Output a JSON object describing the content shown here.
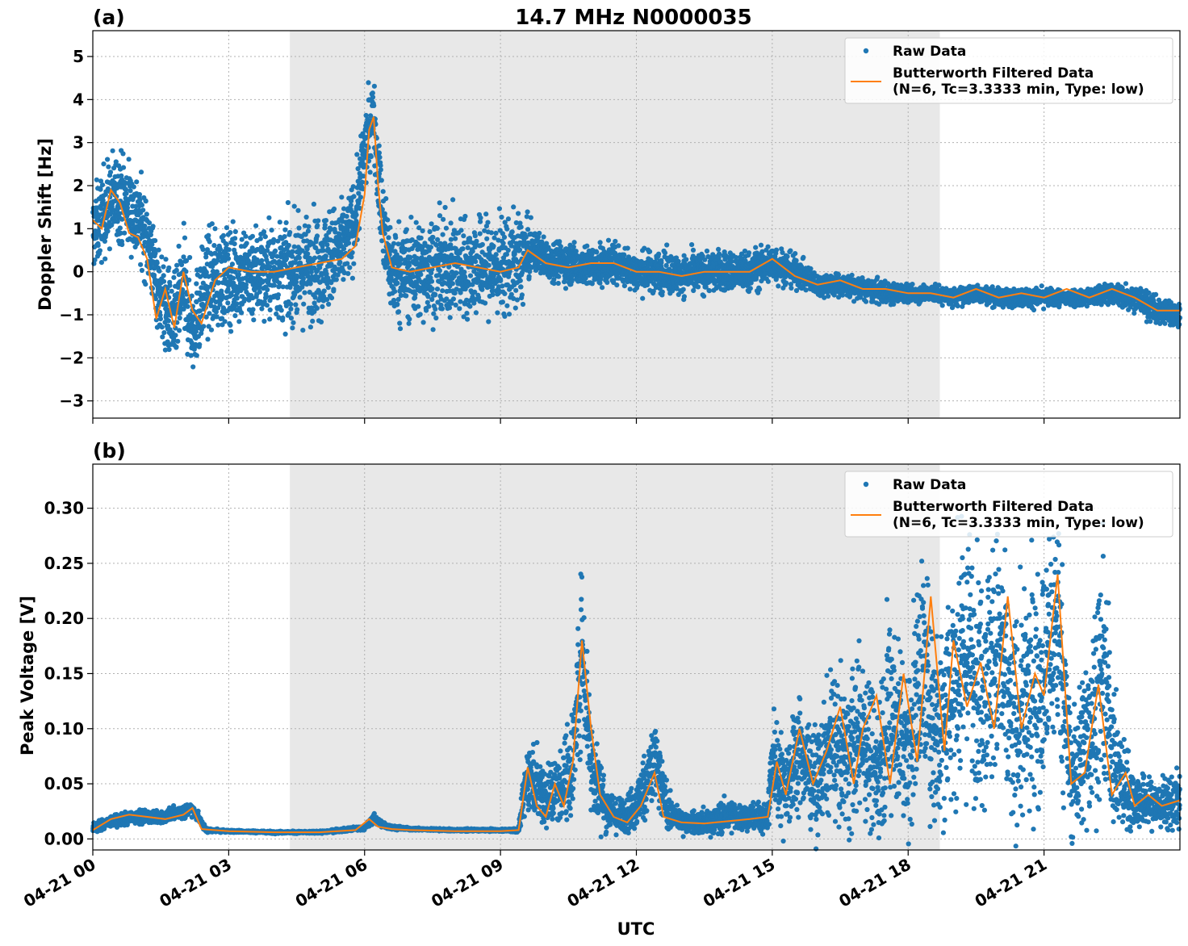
{
  "figure": {
    "title": "14.7 MHz N0000035",
    "xlabel": "UTC",
    "x_tick_labels": [
      "04-21 00",
      "04-21 03",
      "04-21 06",
      "04-21 09",
      "04-21 12",
      "04-21 15",
      "04-21 18",
      "04-21 21"
    ]
  },
  "colors": {
    "raw": "#1f77b4",
    "filtered": "#ff7f0e",
    "shade": "#e8e8e8",
    "grid": "#b0b0b0"
  },
  "chart_data": [
    {
      "type": "scatter",
      "panel_label": "(a)",
      "ylabel": "Doppler Shift [Hz]",
      "xlim_hours": [
        0,
        24
      ],
      "ylim": [
        -3.4,
        5.6
      ],
      "y_ticks": [
        -3,
        -2,
        -1,
        0,
        1,
        2,
        3,
        4,
        5
      ],
      "y_tick_labels": [
        "−3",
        "−2",
        "−1",
        "0",
        "1",
        "2",
        "3",
        "4",
        "5"
      ],
      "grid": true,
      "legend_placement": "top-right",
      "shaded_interval_hours": [
        4.35,
        18.7
      ],
      "series": [
        {
          "name": "Raw Data",
          "style": "points",
          "x_hours": [
            0,
            0.3,
            0.6,
            0.9,
            1.2,
            1.5,
            1.8,
            2.0,
            2.2,
            2.5,
            3.0,
            3.5,
            4.0,
            4.5,
            5.0,
            5.5,
            5.8,
            6.0,
            6.2,
            6.4,
            6.6,
            7.0,
            7.5,
            8.0,
            8.5,
            9.0,
            9.5,
            9.7,
            10.0,
            10.5,
            11.0,
            11.5,
            12.0,
            12.5,
            13.0,
            13.5,
            14.0,
            14.5,
            15.0,
            15.5,
            16.0,
            16.5,
            17.0,
            17.5,
            18.0,
            18.5,
            19.0,
            19.5,
            20.0,
            20.5,
            21.0,
            21.5,
            22.0,
            22.5,
            23.0,
            23.5,
            24.0
          ],
          "center": [
            0.9,
            1.5,
            1.8,
            1.4,
            0.8,
            -0.6,
            -1.2,
            -0.3,
            -1.3,
            -0.3,
            -0.1,
            0.0,
            0.0,
            0.0,
            0.2,
            0.5,
            1.2,
            2.8,
            3.7,
            1.0,
            0.0,
            0.0,
            0.1,
            0.1,
            0.1,
            0.1,
            0.3,
            0.5,
            0.3,
            0.2,
            0.1,
            0.2,
            0.0,
            0.0,
            -0.1,
            0.0,
            0.0,
            0.0,
            0.2,
            0.0,
            -0.3,
            -0.3,
            -0.4,
            -0.5,
            -0.5,
            -0.5,
            -0.6,
            -0.5,
            -0.6,
            -0.6,
            -0.6,
            -0.6,
            -0.6,
            -0.5,
            -0.6,
            -0.9,
            -1.0
          ],
          "spread": [
            0.9,
            1.0,
            1.0,
            1.0,
            0.9,
            1.0,
            1.0,
            1.2,
            1.0,
            1.1,
            1.1,
            1.1,
            1.1,
            1.1,
            1.2,
            1.0,
            0.9,
            0.9,
            0.8,
            1.1,
            1.0,
            1.1,
            1.1,
            1.1,
            1.1,
            1.1,
            1.0,
            0.45,
            0.45,
            0.45,
            0.45,
            0.45,
            0.45,
            0.45,
            0.45,
            0.45,
            0.45,
            0.45,
            0.45,
            0.35,
            0.25,
            0.25,
            0.25,
            0.25,
            0.2,
            0.2,
            0.2,
            0.2,
            0.2,
            0.2,
            0.2,
            0.2,
            0.2,
            0.25,
            0.3,
            0.3,
            0.3
          ]
        },
        {
          "name": "Butterworth Filtered Data\n(N=6, Tc=3.3333 min, Type: low)",
          "style": "line",
          "x_hours": [
            0,
            0.2,
            0.4,
            0.6,
            0.8,
            1.0,
            1.2,
            1.4,
            1.6,
            1.8,
            2.0,
            2.2,
            2.4,
            2.7,
            3.0,
            3.5,
            4.0,
            4.5,
            5.0,
            5.5,
            5.8,
            6.0,
            6.1,
            6.2,
            6.3,
            6.4,
            6.6,
            7.0,
            7.5,
            8.0,
            8.5,
            9.0,
            9.4,
            9.6,
            10.0,
            10.5,
            11.0,
            11.5,
            12.0,
            12.5,
            13.0,
            13.5,
            14.0,
            14.5,
            15.0,
            15.5,
            16.0,
            16.5,
            17.0,
            17.5,
            18.0,
            18.5,
            19.0,
            19.5,
            20.0,
            20.5,
            21.0,
            21.5,
            22.0,
            22.5,
            23.0,
            23.5,
            24.0
          ],
          "values": [
            1.2,
            1.0,
            1.9,
            1.6,
            0.9,
            0.8,
            0.3,
            -1.1,
            -0.4,
            -1.3,
            0.0,
            -0.9,
            -1.2,
            -0.2,
            0.1,
            0.0,
            0.0,
            0.1,
            0.2,
            0.3,
            0.6,
            1.8,
            3.3,
            3.6,
            2.0,
            0.9,
            0.1,
            0.0,
            0.1,
            0.2,
            0.1,
            0.0,
            0.1,
            0.5,
            0.2,
            0.1,
            0.2,
            0.2,
            0.0,
            0.0,
            -0.1,
            0.0,
            0.0,
            0.0,
            0.3,
            -0.1,
            -0.3,
            -0.2,
            -0.4,
            -0.4,
            -0.5,
            -0.5,
            -0.6,
            -0.4,
            -0.6,
            -0.5,
            -0.6,
            -0.4,
            -0.6,
            -0.4,
            -0.6,
            -0.9,
            -0.9
          ]
        }
      ]
    },
    {
      "type": "scatter",
      "panel_label": "(b)",
      "ylabel": "Peak Voltage [V]",
      "xlim_hours": [
        0,
        24
      ],
      "ylim": [
        -0.01,
        0.34
      ],
      "y_ticks": [
        0,
        0.05,
        0.1,
        0.15,
        0.2,
        0.25,
        0.3
      ],
      "y_tick_labels": [
        "0.00",
        "0.05",
        "0.10",
        "0.15",
        "0.20",
        "0.25",
        "0.30"
      ],
      "grid": true,
      "legend_placement": "top-right",
      "shaded_interval_hours": [
        4.35,
        18.7
      ],
      "series": [
        {
          "name": "Raw Data",
          "style": "points",
          "x_hours": [
            0,
            0.5,
            1.0,
            1.5,
            2.0,
            2.2,
            2.5,
            3.0,
            4.0,
            5.0,
            6.0,
            6.2,
            6.5,
            7.0,
            8.0,
            9.0,
            9.4,
            9.6,
            9.8,
            10.0,
            10.3,
            10.6,
            10.8,
            11.0,
            11.3,
            11.6,
            12.0,
            12.4,
            12.7,
            13.0,
            13.5,
            14.0,
            14.5,
            14.9,
            15.0,
            15.3,
            15.6,
            16.0,
            16.3,
            16.6,
            17.0,
            17.3,
            17.6,
            18.0,
            18.3,
            18.6,
            19.0,
            19.3,
            19.6,
            20.0,
            20.3,
            20.6,
            21.0,
            21.3,
            21.6,
            22.0,
            22.3,
            22.6,
            23.0,
            23.5,
            24.0
          ],
          "center": [
            0.01,
            0.017,
            0.02,
            0.02,
            0.025,
            0.028,
            0.008,
            0.007,
            0.006,
            0.006,
            0.01,
            0.018,
            0.011,
            0.009,
            0.008,
            0.008,
            0.008,
            0.06,
            0.05,
            0.04,
            0.045,
            0.07,
            0.18,
            0.07,
            0.03,
            0.02,
            0.03,
            0.07,
            0.025,
            0.015,
            0.015,
            0.02,
            0.02,
            0.02,
            0.07,
            0.05,
            0.08,
            0.05,
            0.09,
            0.07,
            0.1,
            0.06,
            0.12,
            0.08,
            0.16,
            0.1,
            0.14,
            0.17,
            0.14,
            0.17,
            0.1,
            0.12,
            0.15,
            0.2,
            0.05,
            0.1,
            0.15,
            0.06,
            0.035,
            0.03,
            0.035
          ],
          "spread": [
            0.004,
            0.005,
            0.006,
            0.005,
            0.006,
            0.006,
            0.002,
            0.001,
            0.001,
            0.001,
            0.002,
            0.004,
            0.002,
            0.001,
            0.001,
            0.001,
            0.002,
            0.03,
            0.03,
            0.03,
            0.03,
            0.05,
            0.07,
            0.05,
            0.02,
            0.015,
            0.02,
            0.04,
            0.015,
            0.008,
            0.01,
            0.015,
            0.01,
            0.015,
            0.04,
            0.04,
            0.05,
            0.04,
            0.06,
            0.06,
            0.07,
            0.06,
            0.09,
            0.07,
            0.1,
            0.09,
            0.1,
            0.11,
            0.1,
            0.11,
            0.09,
            0.1,
            0.1,
            0.11,
            0.05,
            0.08,
            0.1,
            0.05,
            0.025,
            0.02,
            0.025
          ]
        },
        {
          "name": "Butterworth Filtered Data\n(N=6, Tc=3.3333 min, Type: low)",
          "style": "line",
          "x_hours": [
            0,
            0.4,
            0.8,
            1.2,
            1.6,
            2.0,
            2.2,
            2.4,
            3.0,
            4.0,
            5.0,
            5.8,
            6.1,
            6.3,
            6.6,
            7.0,
            8.0,
            9.0,
            9.4,
            9.6,
            9.8,
            10.0,
            10.2,
            10.4,
            10.6,
            10.8,
            11.0,
            11.2,
            11.5,
            11.8,
            12.1,
            12.4,
            12.6,
            13.0,
            13.5,
            14.0,
            14.5,
            14.9,
            15.1,
            15.3,
            15.6,
            15.9,
            16.2,
            16.5,
            16.8,
            17.0,
            17.3,
            17.6,
            17.9,
            18.2,
            18.5,
            18.8,
            19.0,
            19.3,
            19.6,
            19.9,
            20.2,
            20.5,
            20.8,
            21.0,
            21.3,
            21.6,
            21.9,
            22.2,
            22.5,
            22.8,
            23.0,
            23.3,
            23.6,
            24.0
          ],
          "values": [
            0.008,
            0.018,
            0.022,
            0.02,
            0.018,
            0.022,
            0.028,
            0.009,
            0.007,
            0.006,
            0.006,
            0.008,
            0.018,
            0.011,
            0.009,
            0.008,
            0.007,
            0.007,
            0.008,
            0.065,
            0.03,
            0.02,
            0.05,
            0.03,
            0.07,
            0.18,
            0.1,
            0.04,
            0.02,
            0.015,
            0.03,
            0.06,
            0.02,
            0.015,
            0.014,
            0.016,
            0.018,
            0.02,
            0.07,
            0.04,
            0.1,
            0.05,
            0.08,
            0.12,
            0.05,
            0.1,
            0.13,
            0.05,
            0.15,
            0.07,
            0.22,
            0.08,
            0.18,
            0.12,
            0.16,
            0.1,
            0.22,
            0.1,
            0.15,
            0.13,
            0.24,
            0.05,
            0.06,
            0.14,
            0.04,
            0.06,
            0.03,
            0.04,
            0.03,
            0.035
          ]
        }
      ]
    }
  ]
}
